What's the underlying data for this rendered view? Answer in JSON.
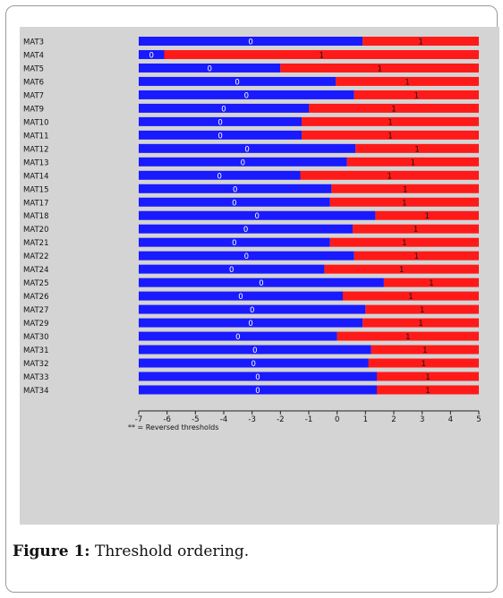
{
  "chart_data": {
    "type": "bar",
    "categories": [
      "MAT3",
      "MAT4",
      "MAT5",
      "MAT6",
      "MAT7",
      "MAT9",
      "MAT10",
      "MAT11",
      "MAT12",
      "MAT13",
      "MAT14",
      "MAT15",
      "MAT17",
      "MAT18",
      "MAT20",
      "MAT21",
      "MAT22",
      "MAT24",
      "MAT25",
      "MAT26",
      "MAT27",
      "MAT29",
      "MAT30",
      "MAT31",
      "MAT32",
      "MAT33",
      "MAT34"
    ],
    "series": [
      {
        "values": [
          0.9,
          -6.1,
          -2.0,
          -0.05,
          0.6,
          -1.0,
          -1.25,
          -1.25,
          0.65,
          0.35,
          -1.3,
          -0.2,
          -0.25,
          1.35,
          0.55,
          -0.25,
          0.6,
          -0.45,
          1.65,
          0.2,
          1.0,
          0.9,
          0.0,
          1.2,
          1.1,
          1.4,
          1.4
        ]
      }
    ],
    "label_0": "0",
    "label_1": "1",
    "xlim": [
      -7,
      5
    ],
    "xticks": [
      "-7",
      "-6",
      "-5",
      "-4",
      "-3",
      "-2",
      "-1",
      "0",
      "1",
      "2",
      "3",
      "4",
      "5"
    ],
    "note": "** = Reversed thresholds",
    "colors": {
      "low": "#1a1aff",
      "high": "#ff1a1a",
      "panel": "#d4d4d4"
    },
    "grid": false,
    "legend": "none"
  },
  "caption": {
    "lead": "Figure 1:",
    "text": " Threshold ordering."
  }
}
